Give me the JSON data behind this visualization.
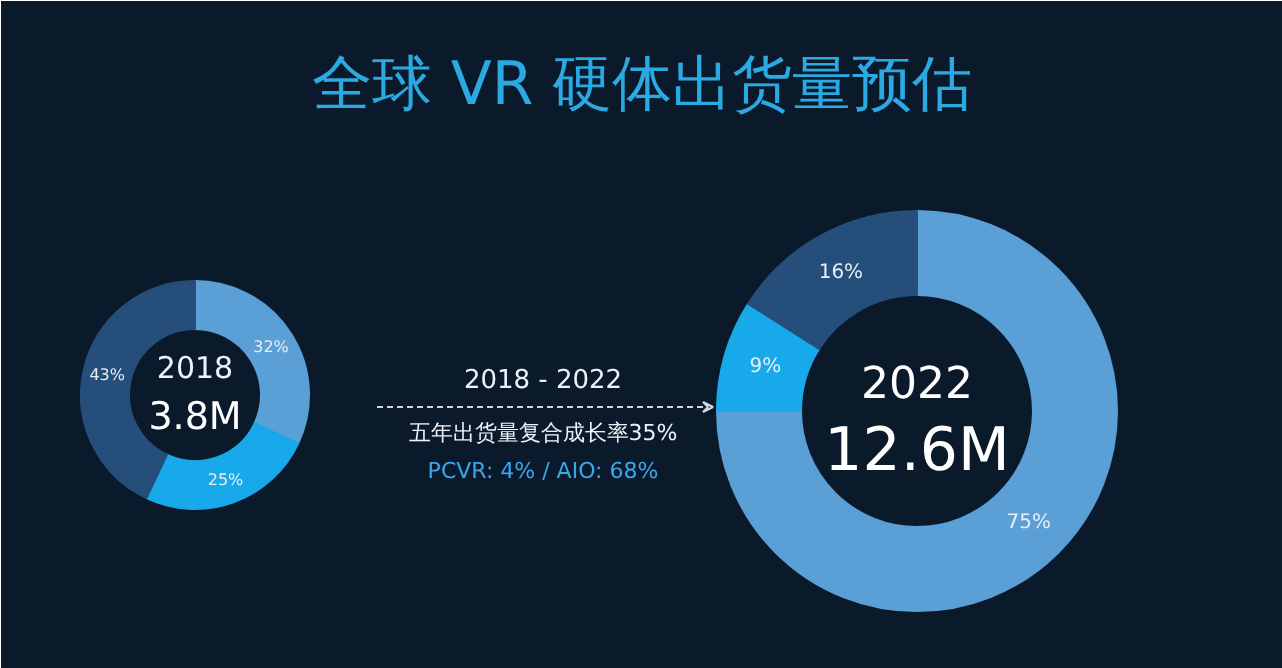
{
  "chart_data": [
    {
      "type": "donut",
      "title": "全球 VR 硬体出货量预估",
      "categories": [
        null,
        null,
        null
      ],
      "values": [
        32,
        25,
        43
      ],
      "colors": [
        "#5a9fd6",
        "#17a9ea",
        "#254f7a"
      ],
      "value_labels": [
        "32%",
        "25%",
        "43%"
      ],
      "annotations": [
        "2018",
        "3.8M",
        "2018 - 2022",
        "五年出货量复合成长率35%",
        "PCVR: 4% / AIO: 68%"
      ]
    },
    {
      "type": "donut",
      "categories": [
        null,
        null,
        null
      ],
      "values": [
        75,
        9,
        16
      ],
      "colors": [
        "#5a9fd6",
        "#17a9ea",
        "#254f7a"
      ],
      "value_labels": [
        "75%",
        "9%",
        "16%"
      ],
      "annotations": [
        "2022",
        "12.6M"
      ]
    }
  ]
}
